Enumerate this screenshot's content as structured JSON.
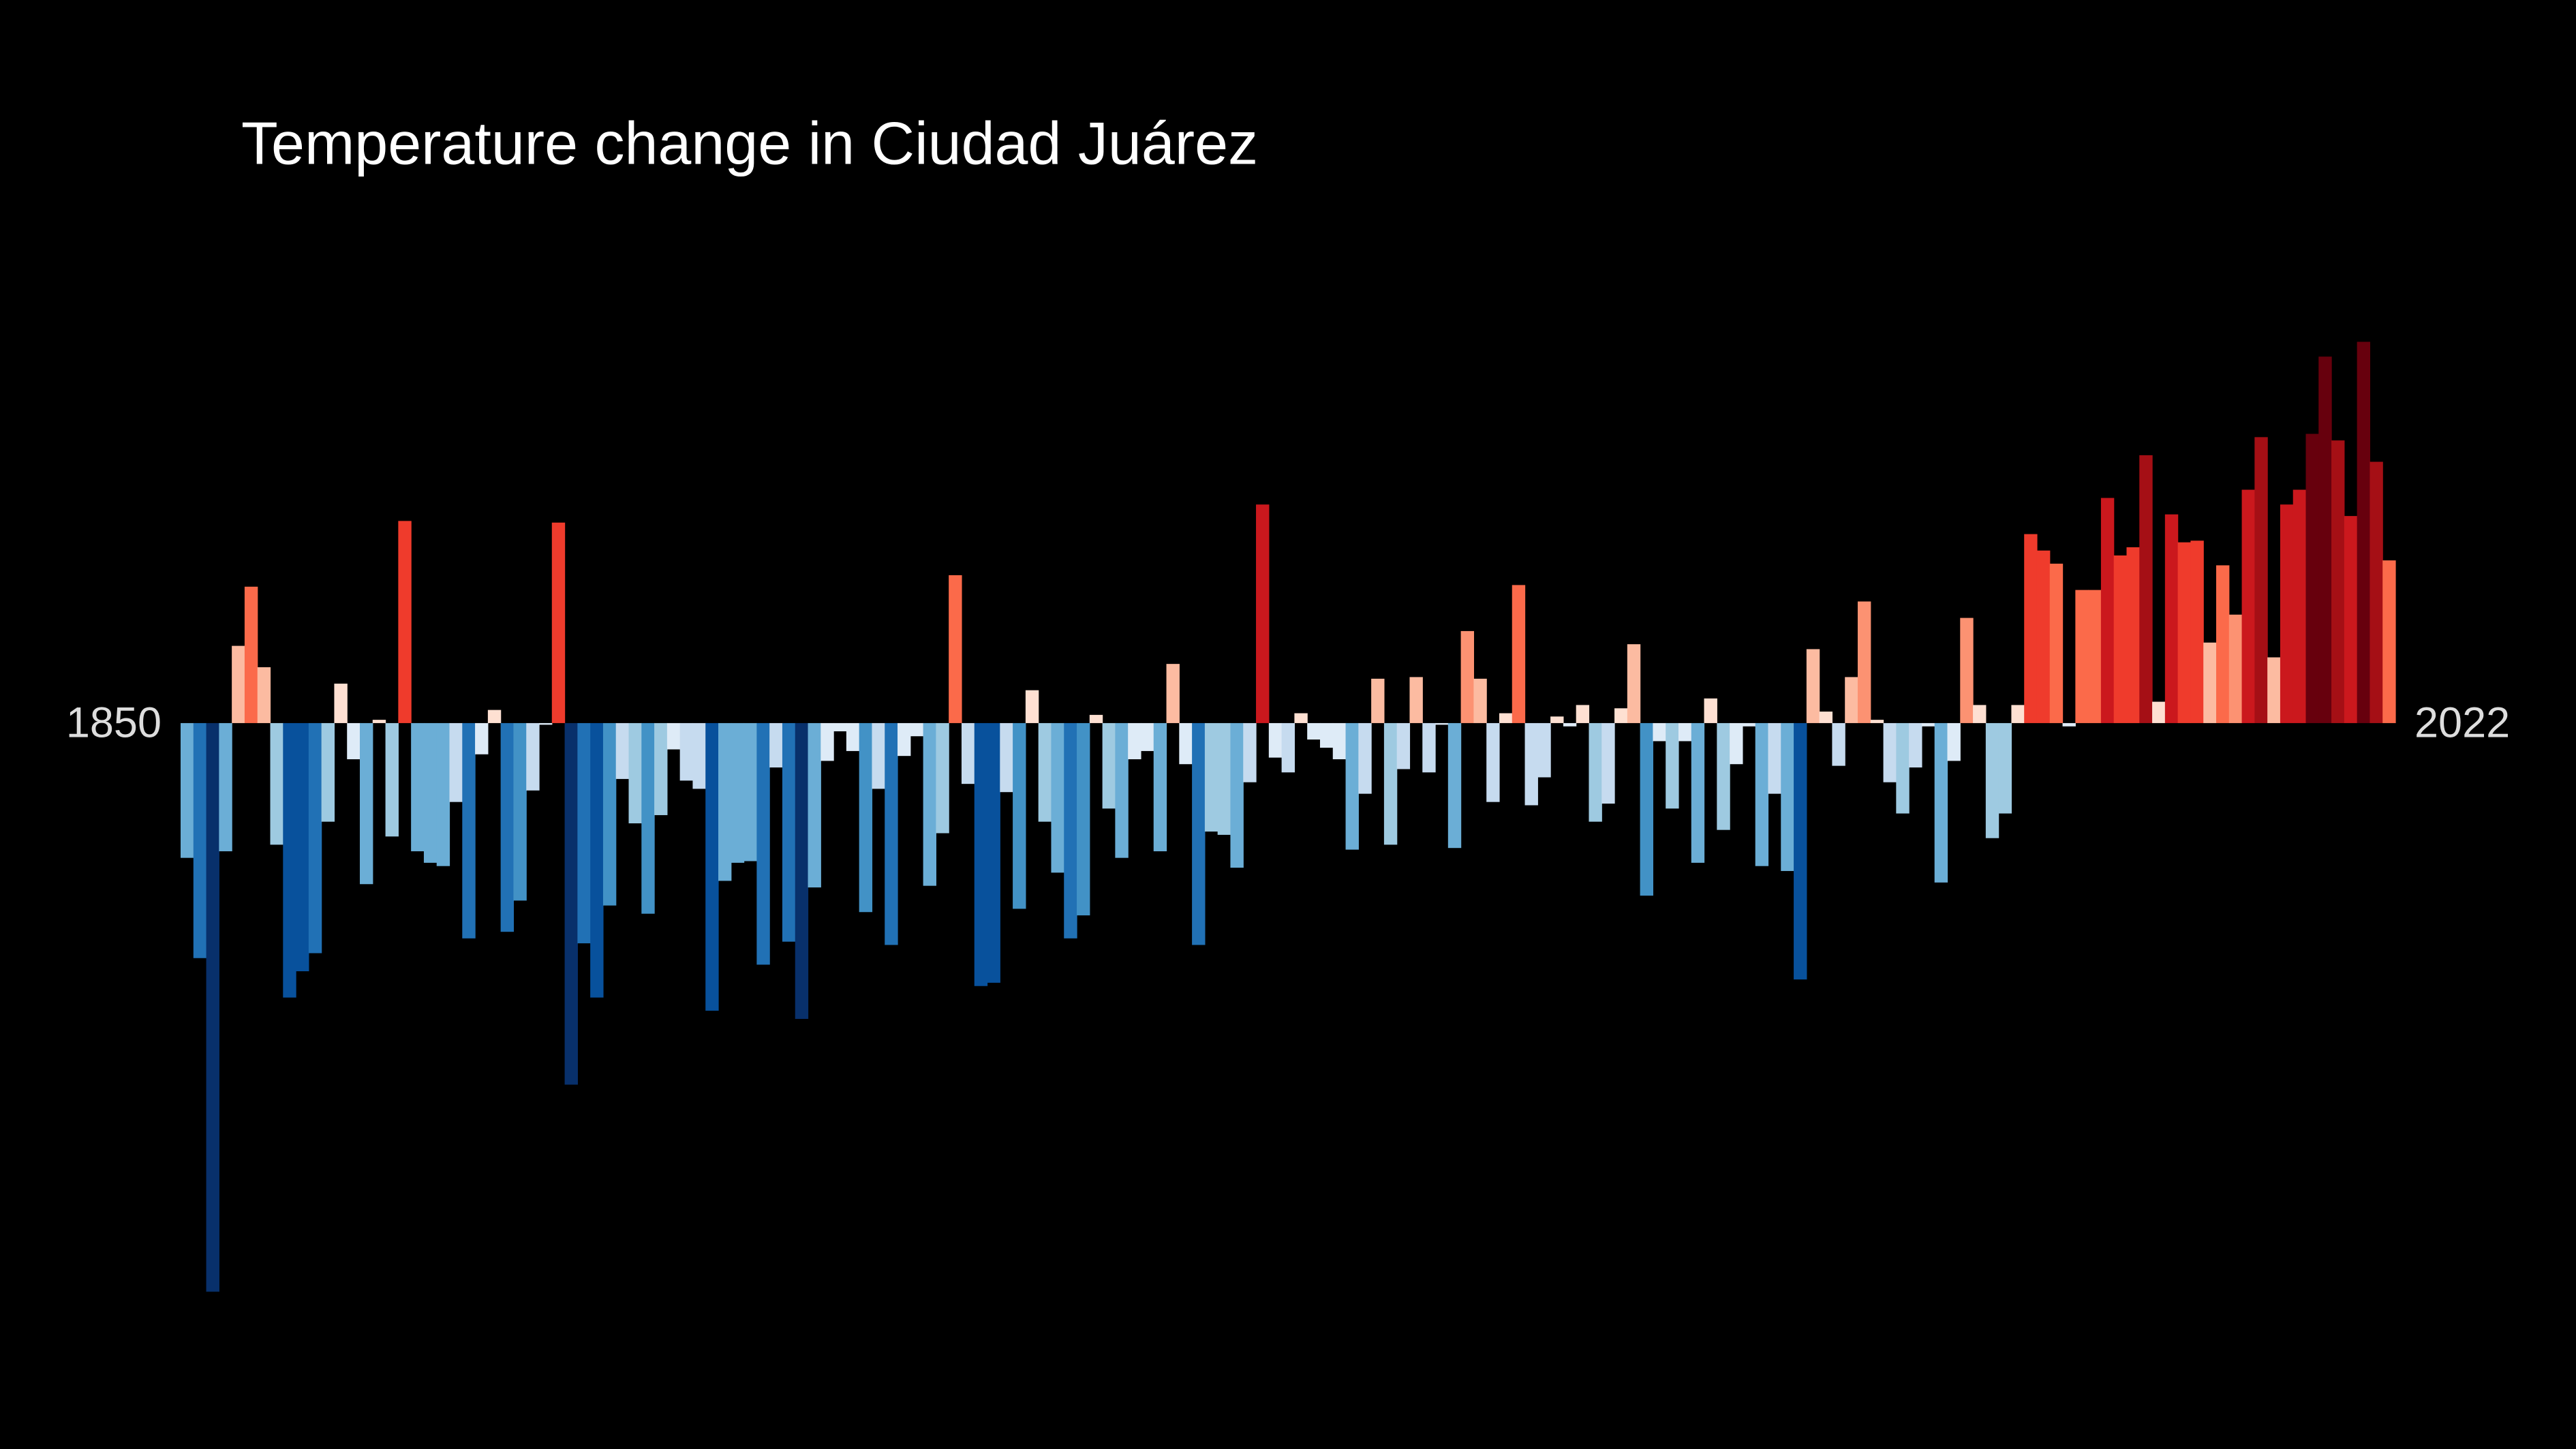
{
  "chart_data": {
    "type": "bar",
    "title": "Temperature change in Ciudad Juárez",
    "categories": [
      1850,
      null,
      null,
      null,
      null,
      null,
      null,
      null,
      null,
      null,
      null,
      null,
      null,
      null,
      null,
      null,
      null,
      null,
      null,
      null,
      null,
      null,
      null,
      null,
      null,
      null,
      null,
      null,
      null,
      null,
      null,
      null,
      null,
      null,
      null,
      null,
      null,
      null,
      null,
      null,
      null,
      null,
      null,
      null,
      null,
      null,
      null,
      null,
      null,
      null,
      null,
      null,
      null,
      null,
      null,
      null,
      null,
      null,
      null,
      null,
      null,
      null,
      null,
      null,
      null,
      null,
      null,
      null,
      null,
      null,
      null,
      null,
      null,
      null,
      null,
      null,
      null,
      null,
      null,
      null,
      null,
      null,
      null,
      null,
      null,
      null,
      null,
      null,
      null,
      null,
      null,
      null,
      null,
      null,
      null,
      null,
      null,
      null,
      null,
      null,
      null,
      null,
      null,
      null,
      null,
      null,
      null,
      null,
      null,
      null,
      null,
      null,
      null,
      null,
      null,
      null,
      null,
      null,
      null,
      null,
      null,
      null,
      null,
      null,
      null,
      null,
      null,
      null,
      null,
      null,
      null,
      null,
      null,
      null,
      null,
      null,
      null,
      null,
      null,
      null,
      null,
      null,
      null,
      null,
      null,
      null,
      null,
      null,
      null,
      null,
      null,
      null,
      null,
      null,
      null,
      null,
      null,
      null,
      null,
      null,
      null,
      null,
      null,
      null,
      null,
      null,
      null,
      null,
      null,
      null,
      null,
      null,
      2022
    ],
    "values": [
      -0.82,
      -1.43,
      -3.46,
      -0.78,
      0.47,
      0.83,
      0.34,
      -0.74,
      -1.67,
      -1.51,
      -1.4,
      -0.6,
      0.24,
      -0.22,
      -0.98,
      0.02,
      -0.69,
      1.23,
      -0.78,
      -0.85,
      -0.87,
      -0.48,
      -1.31,
      -0.19,
      0.08,
      -1.27,
      -1.08,
      -0.41,
      -0.01,
      1.22,
      -2.2,
      -1.34,
      -1.67,
      -1.11,
      -0.34,
      -0.61,
      -1.16,
      -0.56,
      -0.16,
      -0.35,
      -0.4,
      -1.75,
      -0.96,
      -0.85,
      -0.84,
      -1.47,
      -0.27,
      -1.33,
      -1.8,
      -1.0,
      -0.23,
      -0.05,
      -0.17,
      -1.15,
      -0.4,
      -1.35,
      -0.2,
      -0.08,
      -0.99,
      -0.67,
      0.9,
      -0.37,
      -1.6,
      -1.58,
      -0.42,
      -1.13,
      0.2,
      -0.6,
      -0.91,
      -1.31,
      -1.17,
      0.05,
      -0.52,
      -0.82,
      -0.22,
      -0.17,
      -0.78,
      0.36,
      -0.25,
      -1.35,
      -0.66,
      -0.68,
      -0.88,
      -0.36,
      1.33,
      -0.21,
      -0.3,
      0.06,
      -0.1,
      -0.15,
      -0.22,
      -0.77,
      -0.43,
      0.27,
      -0.74,
      -0.28,
      0.28,
      -0.3,
      -0.01,
      -0.76,
      0.56,
      0.27,
      -0.48,
      0.06,
      0.84,
      -0.5,
      -0.33,
      0.04,
      -0.02,
      0.11,
      -0.6,
      -0.49,
      0.09,
      0.48,
      -1.05,
      -0.11,
      -0.52,
      -0.11,
      -0.85,
      0.15,
      -0.65,
      -0.25,
      -0.02,
      -0.87,
      -0.43,
      -0.9,
      -1.56,
      0.45,
      0.07,
      -0.26,
      0.28,
      0.74,
      0.02,
      -0.36,
      -0.55,
      -0.27,
      -0.02,
      -0.97,
      -0.23,
      0.64,
      0.11,
      -0.7,
      -0.55,
      0.11,
      1.15,
      1.05,
      0.97,
      -0.02,
      0.81,
      0.81,
      1.37,
      1.02,
      1.07,
      1.63,
      0.13,
      1.27,
      1.1,
      1.11,
      0.49,
      0.96,
      0.66,
      1.42,
      1.74,
      0.4,
      1.33,
      1.42,
      1.76,
      2.23,
      1.72,
      1.26,
      2.32,
      1.59,
      0.99
    ],
    "colormap": [
      "#08306b",
      "#08519c",
      "#2171b5",
      "#4292c6",
      "#6baed6",
      "#9ecae1",
      "#c6dbef",
      "#deebf7",
      "#fee0d2",
      "#fcbba1",
      "#fc9272",
      "#fb6a4a",
      "#ef3b2c",
      "#cb181d",
      "#a50f15",
      "#67000d"
    ],
    "clim": [
      -2,
      2
    ],
    "ylim": [
      -3.6,
      2.6
    ],
    "grid": false
  }
}
